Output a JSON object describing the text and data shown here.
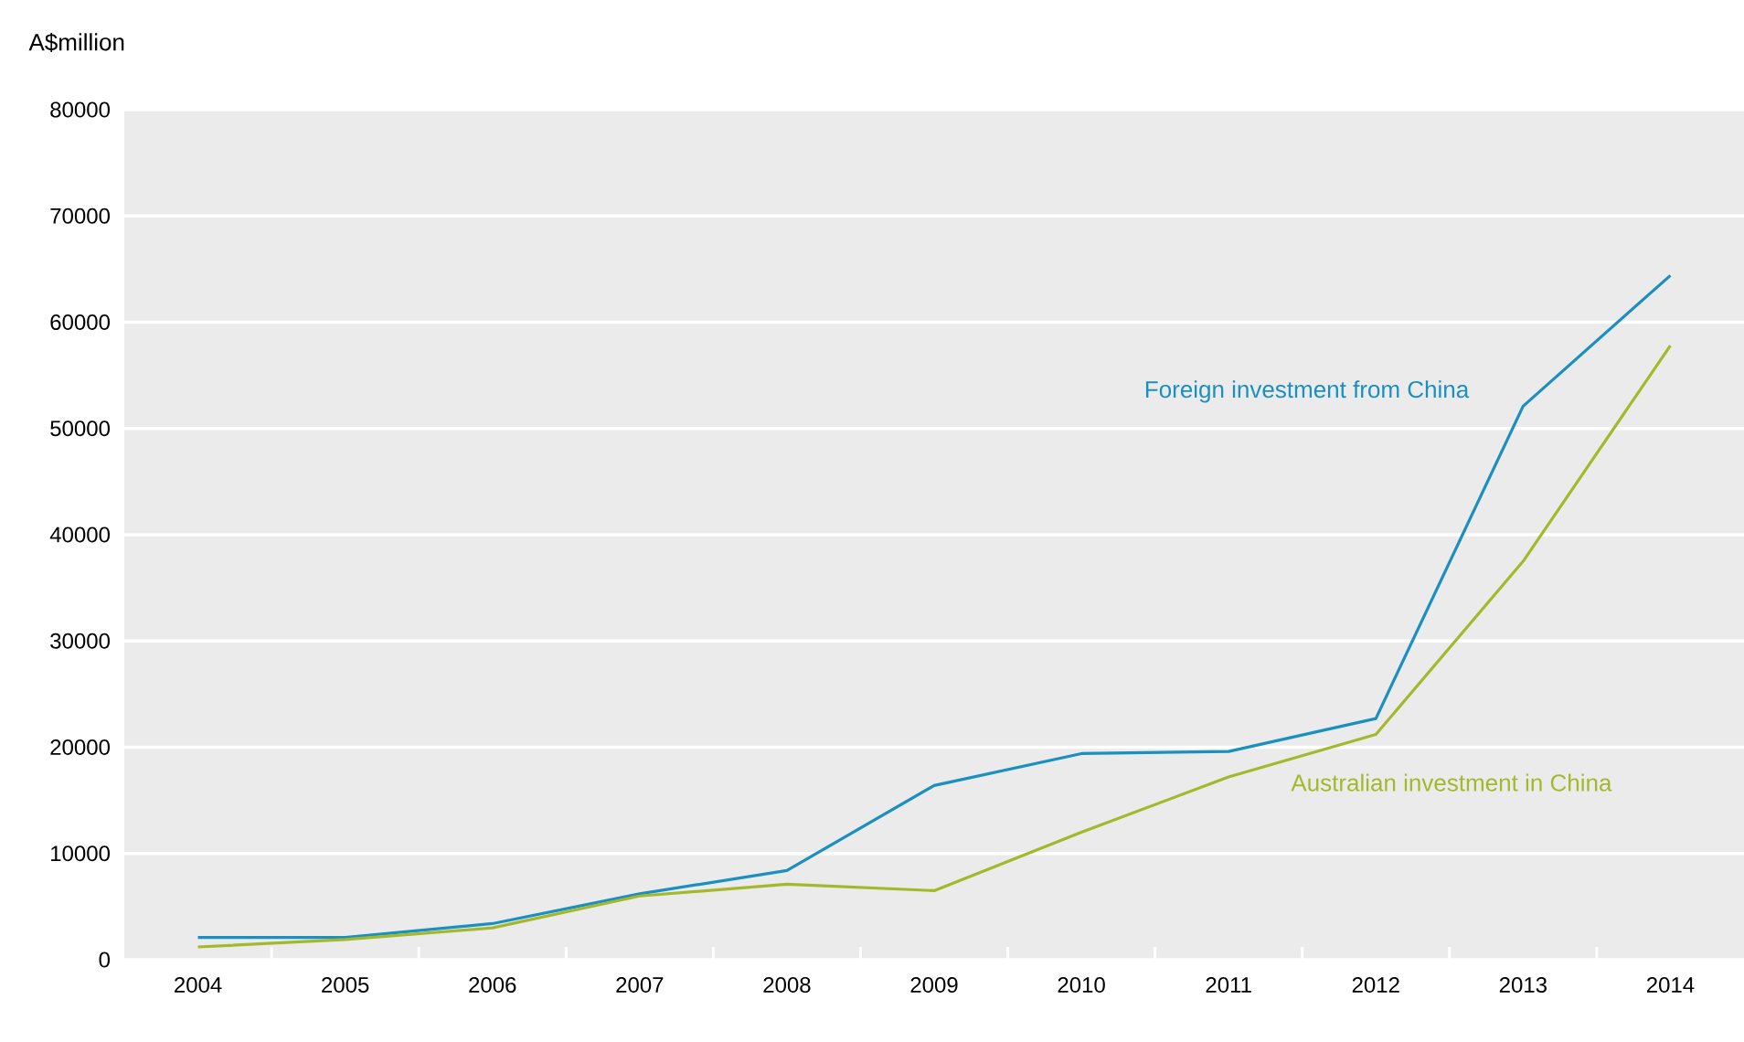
{
  "chart_data": {
    "type": "line",
    "ylabel": "A$million",
    "categories": [
      "2004",
      "2005",
      "2006",
      "2007",
      "2008",
      "2009",
      "2010",
      "2011",
      "2012",
      "2013",
      "2014"
    ],
    "series": [
      {
        "name": "Foreign investment from China",
        "color": "#1a8fc0",
        "values": [
          2100,
          2100,
          3400,
          6200,
          8400,
          16400,
          19400,
          19600,
          22700,
          52100,
          64400
        ]
      },
      {
        "name": "Australian investment in China",
        "color": "#a4b82c",
        "values": [
          1200,
          1900,
          3000,
          6000,
          7100,
          6500,
          12000,
          17200,
          21200,
          37500,
          57800
        ]
      }
    ],
    "ylim": [
      0,
      80000
    ],
    "yticks": [
      0,
      10000,
      20000,
      30000,
      40000,
      50000,
      60000,
      70000,
      80000
    ],
    "grid": "y",
    "legend": false,
    "marker": "none",
    "line_style": "solid"
  }
}
